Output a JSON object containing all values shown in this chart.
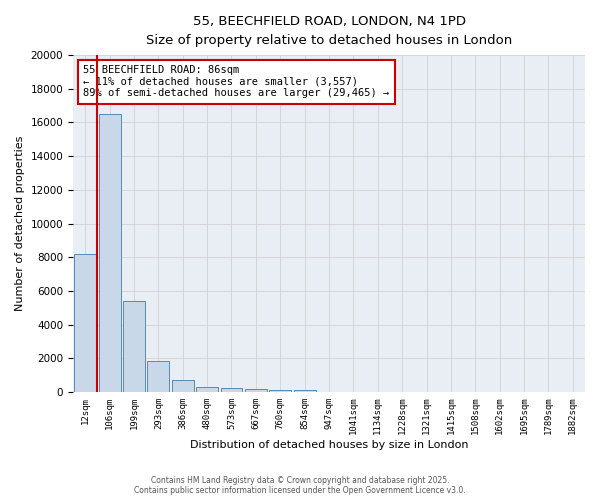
{
  "title_line1": "55, BEECHFIELD ROAD, LONDON, N4 1PD",
  "title_line2": "Size of property relative to detached houses in London",
  "xlabel": "Distribution of detached houses by size in London",
  "ylabel": "Number of detached properties",
  "categories": [
    "12sqm",
    "106sqm",
    "199sqm",
    "293sqm",
    "386sqm",
    "480sqm",
    "573sqm",
    "667sqm",
    "760sqm",
    "854sqm",
    "947sqm",
    "1041sqm",
    "1134sqm",
    "1228sqm",
    "1321sqm",
    "1415sqm",
    "1508sqm",
    "1602sqm",
    "1695sqm",
    "1789sqm",
    "1882sqm"
  ],
  "values": [
    8200,
    16500,
    5400,
    1850,
    700,
    310,
    230,
    190,
    130,
    100,
    0,
    0,
    0,
    0,
    0,
    0,
    0,
    0,
    0,
    0,
    0
  ],
  "bar_color": "#c8d8e8",
  "bar_edge_color": "#5a8ab0",
  "property_line_color": "#cc0000",
  "annotation_text": "55 BEECHFIELD ROAD: 86sqm\n← 11% of detached houses are smaller (3,557)\n89% of semi-detached houses are larger (29,465) →",
  "annotation_box_color": "#ffffff",
  "annotation_box_edge_color": "#cc0000",
  "ylim": [
    0,
    20000
  ],
  "yticks": [
    0,
    2000,
    4000,
    6000,
    8000,
    10000,
    12000,
    14000,
    16000,
    18000,
    20000
  ],
  "grid_color": "#cccccc",
  "background_color": "#e8eef4",
  "footer_line1": "Contains HM Land Registry data © Crown copyright and database right 2025.",
  "footer_line2": "Contains public sector information licensed under the Open Government Licence v3.0."
}
